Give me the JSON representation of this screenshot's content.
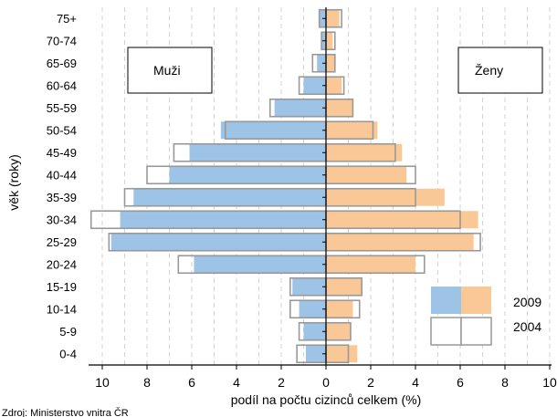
{
  "chart_data": {
    "type": "bar",
    "subtype": "population-pyramid",
    "categories": [
      "75+",
      "70-74",
      "65-69",
      "60-64",
      "55-59",
      "50-54",
      "45-49",
      "40-44",
      "35-39",
      "30-34",
      "25-29",
      "20-24",
      "15-19",
      "10-14",
      "5-9",
      "0-4"
    ],
    "series": [
      {
        "name": "2009",
        "group": "Muži",
        "values": [
          0.3,
          0.2,
          0.4,
          1.0,
          2.3,
          4.7,
          6.1,
          7.0,
          8.6,
          9.2,
          9.6,
          5.9,
          1.5,
          1.2,
          1.0,
          0.9
        ]
      },
      {
        "name": "2009",
        "group": "Ženy",
        "values": [
          0.6,
          0.3,
          0.4,
          0.7,
          1.2,
          2.3,
          3.4,
          3.6,
          5.3,
          6.8,
          6.6,
          4.0,
          1.6,
          1.2,
          1.1,
          1.4
        ]
      },
      {
        "name": "2004",
        "group": "Muži",
        "values": [
          0.3,
          0.2,
          0.6,
          1.2,
          2.5,
          4.5,
          6.8,
          8.0,
          9.0,
          10.5,
          9.7,
          6.6,
          1.6,
          1.6,
          1.2,
          1.3
        ]
      },
      {
        "name": "2004",
        "group": "Ženy",
        "values": [
          0.7,
          0.4,
          0.4,
          0.8,
          1.2,
          2.1,
          3.1,
          4.0,
          4.0,
          6.0,
          6.9,
          4.4,
          1.6,
          1.5,
          1.1,
          1.0
        ]
      }
    ],
    "xlabel": "podíl na počtu cizinců celkem (%)",
    "ylabel": "věk (roky)",
    "xlim": [
      -10,
      10
    ],
    "xticks": [
      "10",
      "8",
      "6",
      "4",
      "2",
      "0",
      "2",
      "4",
      "6",
      "8",
      "10"
    ],
    "grid": "vertical dashed",
    "group_labels": {
      "left": "Muži",
      "right": "Ženy"
    },
    "legend": {
      "placement": "bottom-right",
      "entries": [
        "2009",
        "2004"
      ]
    },
    "colors": {
      "male_2009": "#9DC3E6",
      "female_2009": "#FAC896",
      "outline_2004": "#999999",
      "grid": "#C8C8C8"
    }
  },
  "source_text": "Zdroj: Ministerstvo vnitra ČR"
}
